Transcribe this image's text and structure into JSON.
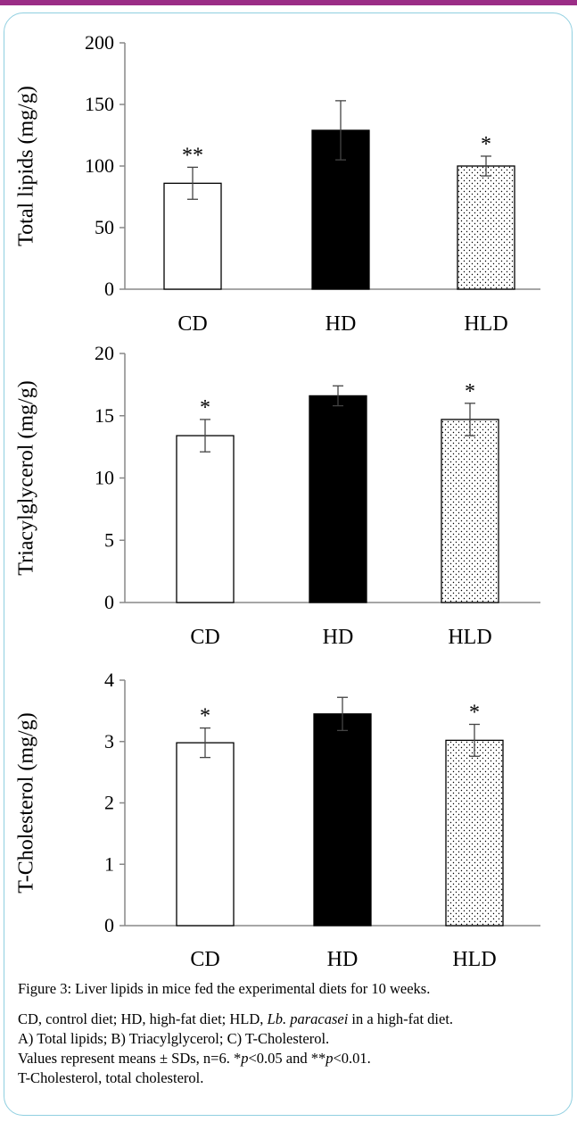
{
  "colors": {
    "accent_bar": "#9b2d86",
    "frame_border": "#8fcfe0"
  },
  "chart_data": [
    {
      "type": "bar",
      "categories": [
        "CD",
        "HD",
        "HLD"
      ],
      "values": [
        86,
        129,
        100
      ],
      "errors": [
        13,
        24,
        8
      ],
      "significance": [
        "**",
        "",
        "*"
      ],
      "bar_fills": [
        "white",
        "black",
        "dotted"
      ],
      "ylabel": "Total lipids (mg/g)",
      "ylim": [
        0,
        200
      ],
      "yticks": [
        0,
        50,
        100,
        150,
        200
      ],
      "ytick_labels": [
        "0",
        "50",
        "100",
        "150",
        "200"
      ],
      "grid": false
    },
    {
      "type": "bar",
      "categories": [
        "CD",
        "HD",
        "HLD"
      ],
      "values": [
        13.4,
        16.6,
        14.7
      ],
      "errors": [
        1.3,
        0.8,
        1.3
      ],
      "significance": [
        "*",
        "",
        "*"
      ],
      "bar_fills": [
        "white",
        "black",
        "dotted"
      ],
      "ylabel": "Triacylglycerol (mg/g)",
      "ylim": [
        0,
        20
      ],
      "yticks": [
        0,
        5,
        10,
        15,
        20
      ],
      "ytick_labels": [
        "0",
        "5",
        "10",
        "15",
        "20"
      ],
      "grid": false
    },
    {
      "type": "bar",
      "categories": [
        "CD",
        "HD",
        "HLD"
      ],
      "values": [
        2.98,
        3.45,
        3.02
      ],
      "errors": [
        0.24,
        0.27,
        0.26
      ],
      "significance": [
        "*",
        "",
        "*"
      ],
      "bar_fills": [
        "white",
        "black",
        "dotted"
      ],
      "ylabel": "T-Cholesterol (mg/g)",
      "ylim": [
        0,
        4
      ],
      "yticks": [
        0,
        1,
        2,
        3,
        4
      ],
      "ytick_labels": [
        "0",
        "1",
        "2",
        "3",
        "4"
      ],
      "grid": false
    }
  ],
  "caption": {
    "title": "Figure 3: Liver lipids in mice fed the experimental diets for 10 weeks.",
    "line1_prefix": "CD, control diet; HD, high-fat diet; HLD, ",
    "line1_italic": "Lb. paracasei",
    "line1_suffix": " in a high-fat diet.",
    "line2": "A) Total lipids; B) Triacylglycerol; C) T-Cholesterol.",
    "line3_a": "Values represent means ± SDs, n=6. *",
    "line3_p1": "p",
    "line3_b": "<0.05 and **",
    "line3_p2": "p",
    "line3_c": "<0.01.",
    "line4": "T-Cholesterol, total cholesterol."
  }
}
